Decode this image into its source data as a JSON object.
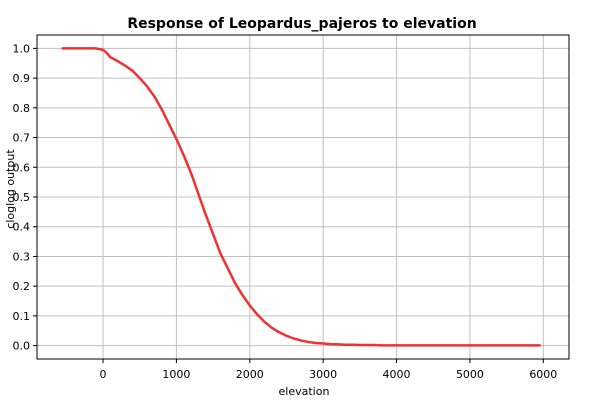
{
  "chart_data": {
    "type": "line",
    "title": "Response of Leopardus_pajeros to elevation",
    "xlabel": "elevation",
    "ylabel": "cloglog output",
    "xlim": [
      -900,
      6350
    ],
    "ylim": [
      -0.045,
      1.045
    ],
    "x_ticks": [
      0,
      1000,
      2000,
      3000,
      4000,
      5000,
      6000
    ],
    "y_ticks": [
      0.0,
      0.1,
      0.2,
      0.3,
      0.4,
      0.5,
      0.6,
      0.7,
      0.8,
      0.9,
      1.0
    ],
    "grid": true,
    "series": [
      {
        "color": "#f03232",
        "x": [
          -550,
          -300,
          -100,
          0,
          50,
          100,
          200,
          300,
          400,
          500,
          600,
          700,
          800,
          900,
          1000,
          1100,
          1200,
          1300,
          1400,
          1500,
          1600,
          1700,
          1800,
          1900,
          2000,
          2100,
          2200,
          2300,
          2400,
          2500,
          2600,
          2700,
          2800,
          2900,
          3000,
          3100,
          3200,
          3300,
          3400,
          3500,
          3600,
          3700,
          3800,
          4000,
          4500,
          5000,
          5500,
          5950
        ],
        "y": [
          1.0,
          1.0,
          1.0,
          0.995,
          0.985,
          0.97,
          0.957,
          0.942,
          0.925,
          0.9,
          0.872,
          0.838,
          0.795,
          0.745,
          0.695,
          0.64,
          0.58,
          0.51,
          0.44,
          0.375,
          0.31,
          0.26,
          0.21,
          0.17,
          0.135,
          0.105,
          0.08,
          0.06,
          0.045,
          0.033,
          0.024,
          0.017,
          0.012,
          0.009,
          0.007,
          0.005,
          0.004,
          0.003,
          0.003,
          0.002,
          0.002,
          0.002,
          0.001,
          0.001,
          0.001,
          0.001,
          0.001,
          0.001
        ]
      }
    ]
  }
}
